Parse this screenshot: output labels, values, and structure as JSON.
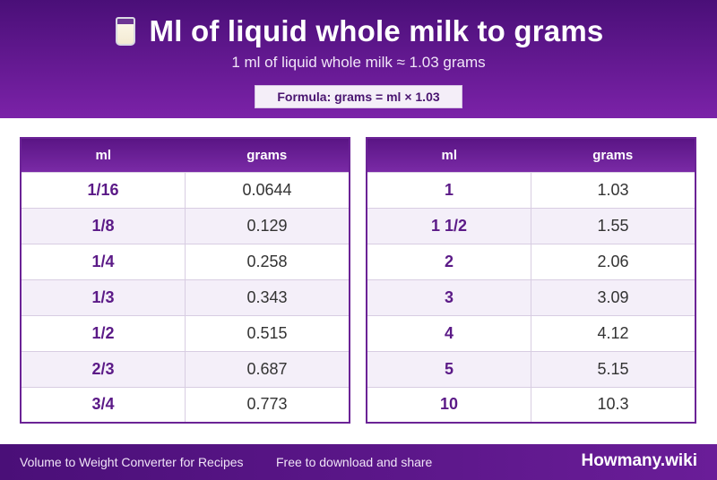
{
  "header": {
    "icon": "milk-glass-icon",
    "title": "Ml of liquid whole milk to grams",
    "subtitle": "1 ml of liquid whole milk ≈ 1.03 grams",
    "formula": "Formula: grams = ml × 1.03"
  },
  "tables": {
    "columns": {
      "ml": "ml",
      "grams": "grams"
    },
    "left": [
      {
        "ml": "1/16",
        "grams": "0.0644"
      },
      {
        "ml": "1/8",
        "grams": "0.129"
      },
      {
        "ml": "1/4",
        "grams": "0.258"
      },
      {
        "ml": "1/3",
        "grams": "0.343"
      },
      {
        "ml": "1/2",
        "grams": "0.515"
      },
      {
        "ml": "2/3",
        "grams": "0.687"
      },
      {
        "ml": "3/4",
        "grams": "0.773"
      }
    ],
    "right": [
      {
        "ml": "1",
        "grams": "1.03"
      },
      {
        "ml": "1 1/2",
        "grams": "1.55"
      },
      {
        "ml": "2",
        "grams": "2.06"
      },
      {
        "ml": "3",
        "grams": "3.09"
      },
      {
        "ml": "4",
        "grams": "4.12"
      },
      {
        "ml": "5",
        "grams": "5.15"
      },
      {
        "ml": "10",
        "grams": "10.3"
      }
    ]
  },
  "footer": {
    "left_text": "Volume to Weight Converter for Recipes",
    "mid_text": "Free to download and share",
    "brand": "Howmany.wiki"
  },
  "colors": {
    "primary": "#5a1585",
    "accent": "#7b22a8",
    "row_alt": "#f4eff9"
  }
}
